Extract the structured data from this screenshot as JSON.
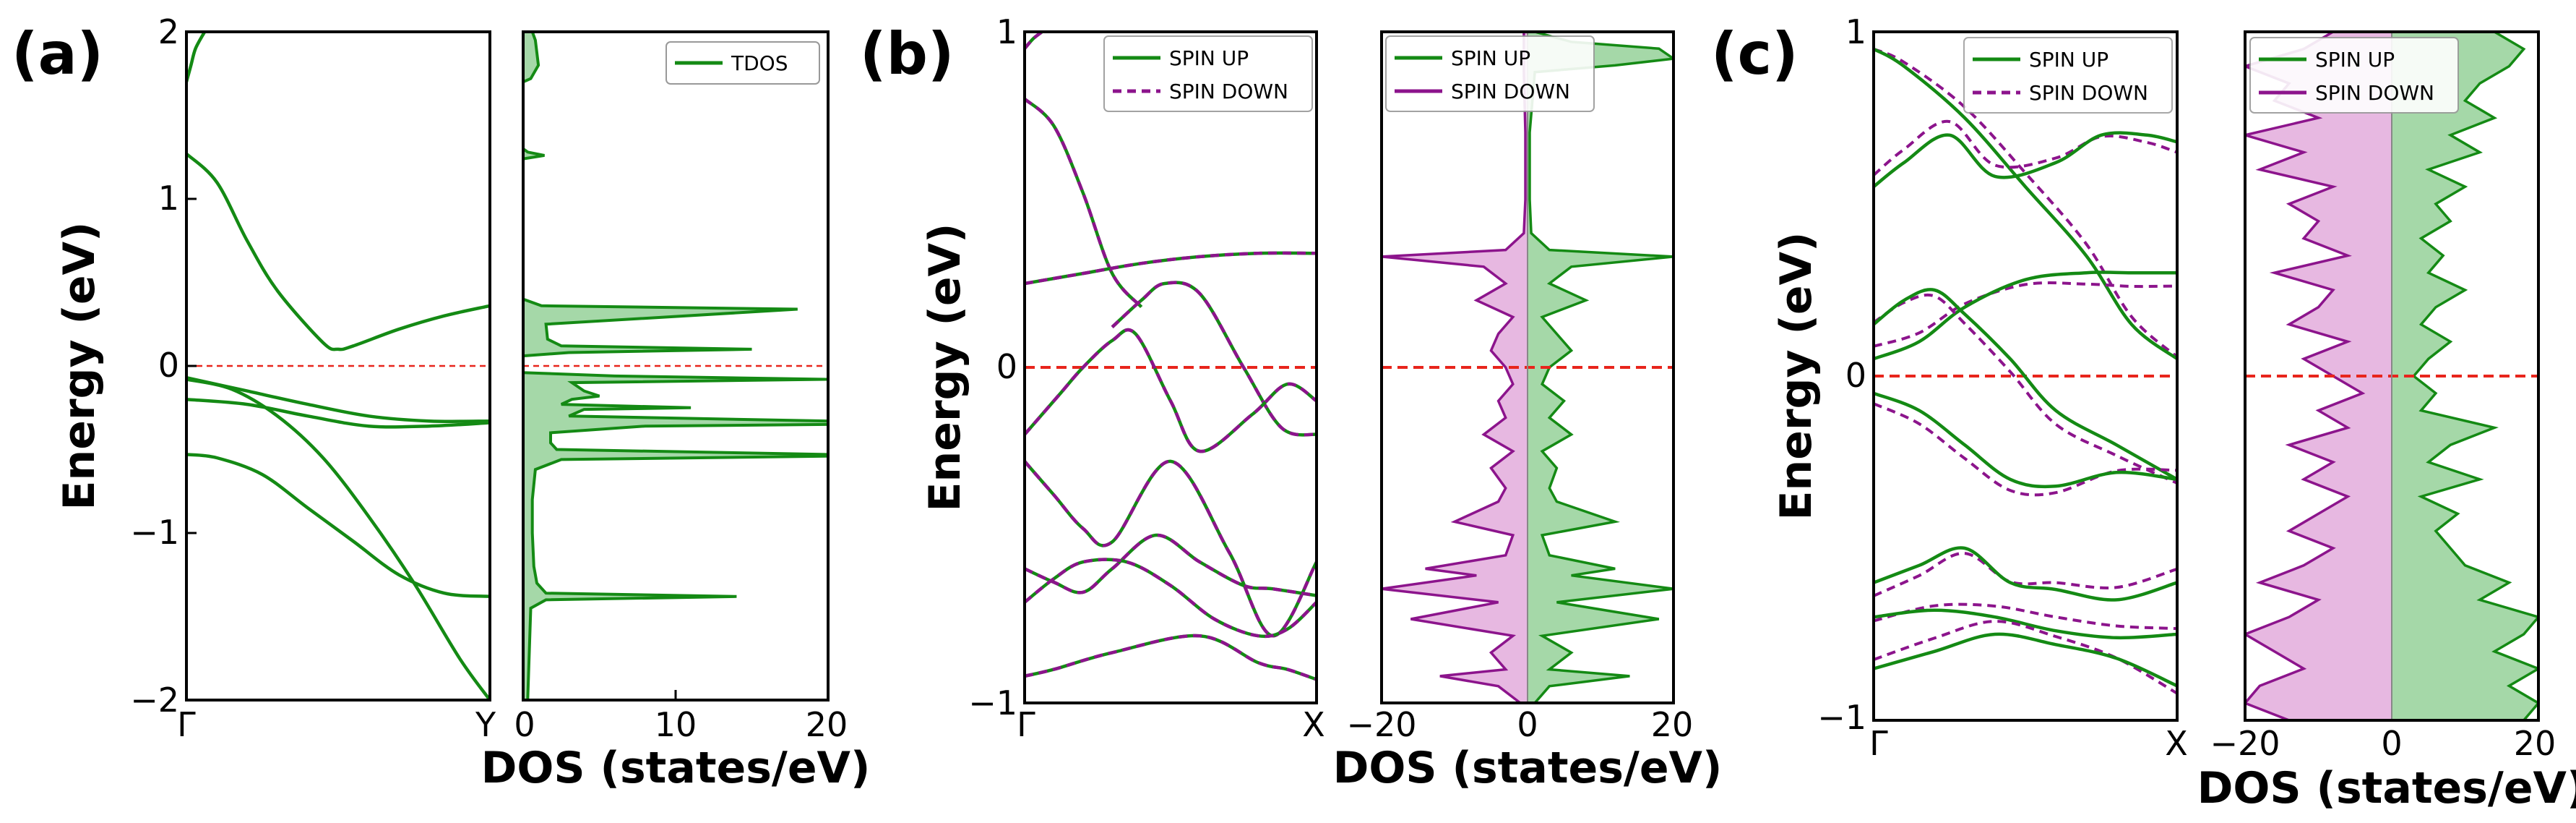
{
  "colors": {
    "up": "#148a14",
    "down": "#8c148c",
    "up_fill": "#a5d8a8",
    "down_fill": "#e7b8e1",
    "fermi": "#e8251c",
    "frame": "#000000"
  },
  "labels": {
    "a": "(a)",
    "b": "(b)",
    "c": "(c)",
    "ylabel": "Energy (eV)",
    "xlabel": "DOS (states/eV)",
    "tdos": "TDOS",
    "spin_up": "SPIN UP",
    "spin_down": "SPIN DOWN"
  },
  "ticks": {
    "energy_a": [
      "2",
      "1",
      "0",
      "−1",
      "−2"
    ],
    "energy_b": [
      "1",
      "0",
      "−1"
    ],
    "energy_c": [
      "1",
      "0",
      "−1"
    ],
    "dos_a": [
      "0",
      "10",
      "20"
    ],
    "dos_bc": [
      "−20",
      "0",
      "20"
    ],
    "kpath_a": [
      "Γ",
      "Y"
    ],
    "kpath_bc": [
      "Γ",
      "X"
    ]
  },
  "chart_data": [
    {
      "panel": "a-bands",
      "type": "line",
      "xlabel": "",
      "ylabel": "Energy (eV)",
      "ylim": [
        -2,
        2
      ],
      "xticks": [
        "Γ",
        "Y"
      ],
      "fermi_level": 0,
      "series": [
        {
          "name": "band1",
          "x": [
            0,
            0.015,
            0.03,
            0.06
          ],
          "y": [
            1.7,
            1.8,
            1.9,
            2.0
          ]
        },
        {
          "name": "band2",
          "x": [
            0,
            0.1,
            0.2,
            0.3,
            0.45,
            0.5,
            0.55,
            0.7,
            0.85,
            1.0
          ],
          "y": [
            1.27,
            1.1,
            0.75,
            0.45,
            0.14,
            0.1,
            0.12,
            0.22,
            0.3,
            0.36
          ]
        },
        {
          "name": "band3",
          "x": [
            0,
            0.2,
            0.4,
            0.6,
            0.8,
            1.0
          ],
          "y": [
            -0.07,
            -0.15,
            -0.23,
            -0.3,
            -0.33,
            -0.33
          ]
        },
        {
          "name": "band4",
          "x": [
            0,
            0.2,
            0.4,
            0.6,
            0.8,
            1.0
          ],
          "y": [
            -0.2,
            -0.23,
            -0.3,
            -0.36,
            -0.36,
            -0.34
          ]
        },
        {
          "name": "band5",
          "x": [
            0,
            0.1,
            0.25,
            0.4,
            0.55,
            0.7,
            0.85,
            1.0
          ],
          "y": [
            -0.53,
            -0.55,
            -0.65,
            -0.85,
            -1.05,
            -1.25,
            -1.36,
            -1.38
          ]
        },
        {
          "name": "band6",
          "x": [
            0,
            0.15,
            0.3,
            0.45,
            0.6,
            0.75,
            0.9,
            1.0
          ],
          "y": [
            -0.08,
            -0.14,
            -0.3,
            -0.55,
            -0.9,
            -1.3,
            -1.75,
            -2.0
          ]
        }
      ]
    },
    {
      "panel": "a-dos",
      "type": "area",
      "xlabel": "DOS (states/eV)",
      "ylabel": "",
      "xlim": [
        0,
        20
      ],
      "ylim": [
        -2,
        2
      ],
      "legend": [
        "TDOS"
      ],
      "series": [
        {
          "name": "TDOS",
          "e": [
            -2.0,
            -1.45,
            -1.4,
            -1.38,
            -1.36,
            -1.3,
            -1.2,
            -1.0,
            -0.8,
            -0.62,
            -0.56,
            -0.54,
            -0.53,
            -0.5,
            -0.46,
            -0.4,
            -0.36,
            -0.35,
            -0.33,
            -0.3,
            -0.26,
            -0.25,
            -0.23,
            -0.2,
            -0.18,
            -0.15,
            -0.1,
            -0.08,
            -0.06,
            -0.04,
            0.0,
            0.06,
            0.08,
            0.1,
            0.12,
            0.16,
            0.25,
            0.34,
            0.36,
            0.4,
            1.24,
            1.26,
            1.28,
            1.3,
            1.7,
            1.72,
            1.8,
            1.95,
            2.0
          ],
          "dos": [
            0.3,
            0.5,
            1.5,
            14,
            1.5,
            0.9,
            0.7,
            0.6,
            0.6,
            0.8,
            2.5,
            20,
            20,
            2.2,
            1.8,
            1.8,
            8,
            20,
            20,
            3,
            4,
            11,
            2.5,
            3.2,
            5,
            4,
            3.2,
            20,
            6,
            0,
            0,
            0,
            3,
            15,
            2.5,
            1.6,
            1.5,
            18,
            1.2,
            0,
            0,
            1.4,
            0.3,
            0,
            0,
            0.5,
            1.0,
            0.8,
            0.6
          ]
        }
      ]
    },
    {
      "panel": "b-bands",
      "type": "line",
      "xlabel": "",
      "ylabel": "Energy (eV)",
      "ylim": [
        -1,
        1
      ],
      "xticks": [
        "Γ",
        "X"
      ],
      "fermi_level": 0,
      "legend": [
        "SPIN UP",
        "SPIN DOWN"
      ],
      "series": [
        {
          "name": "band1",
          "x": [
            0,
            0.03,
            0.06
          ],
          "y": [
            0.95,
            0.98,
            1.0
          ]
        },
        {
          "name": "band2",
          "x": [
            0,
            0.1,
            0.2,
            0.3,
            0.4
          ],
          "y": [
            0.8,
            0.72,
            0.52,
            0.28,
            0.18
          ]
        },
        {
          "name": "band3",
          "x": [
            0,
            0.2,
            0.4,
            0.6,
            0.8,
            1.0
          ],
          "y": [
            0.25,
            0.28,
            0.31,
            0.33,
            0.34,
            0.34
          ]
        },
        {
          "name": "band4",
          "x": [
            0.3,
            0.4,
            0.48,
            0.6,
            0.75,
            0.88,
            1.0
          ],
          "y": [
            0.12,
            0.2,
            0.25,
            0.22,
            0.0,
            -0.18,
            -0.2
          ]
        },
        {
          "name": "band5",
          "x": [
            0,
            0.12,
            0.2,
            0.3,
            0.38,
            0.5,
            0.6,
            0.78,
            0.9,
            1.0
          ],
          "y": [
            -0.2,
            -0.08,
            0.0,
            0.08,
            0.1,
            -0.1,
            -0.25,
            -0.14,
            -0.05,
            -0.1
          ]
        },
        {
          "name": "band6",
          "x": [
            0,
            0.1,
            0.2,
            0.3,
            0.5,
            0.7,
            0.85,
            1.0
          ],
          "y": [
            -0.28,
            -0.38,
            -0.48,
            -0.52,
            -0.28,
            -0.55,
            -0.8,
            -0.58
          ]
        },
        {
          "name": "band7",
          "x": [
            0,
            0.1,
            0.2,
            0.3,
            0.45,
            0.6,
            0.75,
            0.85,
            1.0
          ],
          "y": [
            -0.6,
            -0.64,
            -0.67,
            -0.6,
            -0.5,
            -0.58,
            -0.65,
            -0.66,
            -0.68
          ]
        },
        {
          "name": "band8",
          "x": [
            0,
            0.1,
            0.2,
            0.35,
            0.5,
            0.65,
            0.8,
            0.9,
            1.0
          ],
          "y": [
            -0.7,
            -0.63,
            -0.58,
            -0.58,
            -0.65,
            -0.75,
            -0.8,
            -0.78,
            -0.7
          ]
        },
        {
          "name": "band9",
          "x": [
            0,
            0.1,
            0.3,
            0.6,
            0.8,
            0.9,
            1.0
          ],
          "y": [
            -0.92,
            -0.9,
            -0.85,
            -0.8,
            -0.88,
            -0.9,
            -0.93
          ]
        }
      ]
    },
    {
      "panel": "b-dos",
      "type": "area",
      "xlabel": "DOS (states/eV)",
      "ylabel": "",
      "xlim": [
        -20,
        20
      ],
      "ylim": [
        -1,
        1
      ],
      "legend": [
        "SPIN UP",
        "SPIN DOWN"
      ],
      "series": [
        {
          "name": "SPIN UP",
          "e": [
            -1.0,
            -0.95,
            -0.92,
            -0.9,
            -0.85,
            -0.8,
            -0.75,
            -0.7,
            -0.66,
            -0.62,
            -0.6,
            -0.56,
            -0.5,
            -0.46,
            -0.4,
            -0.36,
            -0.3,
            -0.25,
            -0.2,
            -0.15,
            -0.1,
            -0.05,
            0.0,
            0.05,
            0.1,
            0.15,
            0.2,
            0.25,
            0.3,
            0.33,
            0.35,
            0.4,
            0.5,
            0.7,
            0.88,
            0.9,
            0.92,
            0.95,
            0.97,
            1.0
          ],
          "dos": [
            1,
            3,
            14,
            3,
            6,
            2,
            18,
            4,
            20,
            6,
            12,
            3,
            2,
            12,
            4,
            3,
            4,
            2,
            6,
            3,
            5,
            2,
            3,
            6,
            4,
            2,
            8,
            3,
            6,
            20,
            3,
            0.5,
            0.3,
            0.3,
            1,
            12,
            20,
            18,
            6,
            1
          ]
        },
        {
          "name": "SPIN DOWN",
          "e": [
            -1.0,
            -0.95,
            -0.92,
            -0.9,
            -0.85,
            -0.8,
            -0.75,
            -0.7,
            -0.66,
            -0.62,
            -0.6,
            -0.56,
            -0.5,
            -0.46,
            -0.4,
            -0.36,
            -0.3,
            -0.25,
            -0.2,
            -0.15,
            -0.1,
            -0.05,
            0.0,
            0.05,
            0.1,
            0.15,
            0.2,
            0.25,
            0.3,
            0.33,
            0.35,
            0.4,
            0.5,
            0.7,
            0.88,
            0.9,
            0.92,
            0.95,
            0.97,
            1.0
          ],
          "dos": [
            1,
            4,
            12,
            3,
            5,
            2,
            16,
            4,
            20,
            7,
            14,
            3,
            2,
            10,
            4,
            3,
            5,
            2,
            6,
            3,
            4,
            2,
            3,
            5,
            4,
            2,
            7,
            3,
            6,
            20,
            3,
            0.5,
            0.3,
            0.3,
            0.5,
            0.5,
            0.5,
            0.5,
            0.5,
            0.5
          ]
        }
      ]
    },
    {
      "panel": "c-bands",
      "type": "line",
      "xlabel": "",
      "ylabel": "Energy (eV)",
      "ylim": [
        -1,
        1
      ],
      "xticks": [
        "Γ",
        "X"
      ],
      "fermi_level": 0,
      "legend": [
        "SPIN UP",
        "SPIN DOWN"
      ],
      "series": [
        {
          "name": "up1",
          "spin": "up",
          "x": [
            0,
            0.1,
            0.3,
            0.5,
            0.7,
            0.85,
            1.0
          ],
          "y": [
            0.95,
            0.9,
            0.75,
            0.55,
            0.35,
            0.15,
            0.05
          ]
        },
        {
          "name": "up2",
          "spin": "up",
          "x": [
            0,
            0.1,
            0.25,
            0.4,
            0.6,
            0.75,
            0.9,
            1.0
          ],
          "y": [
            0.55,
            0.62,
            0.7,
            0.58,
            0.62,
            0.7,
            0.7,
            0.68
          ]
        },
        {
          "name": "up3",
          "spin": "up",
          "x": [
            0,
            0.15,
            0.3,
            0.5,
            0.7,
            0.85,
            1.0
          ],
          "y": [
            0.05,
            0.1,
            0.2,
            0.28,
            0.3,
            0.3,
            0.3
          ]
        },
        {
          "name": "up4",
          "spin": "up",
          "x": [
            0,
            0.1,
            0.2,
            0.3,
            0.45,
            0.6,
            0.8,
            1.0
          ],
          "y": [
            0.15,
            0.22,
            0.25,
            0.18,
            0.05,
            -0.1,
            -0.2,
            -0.3
          ]
        },
        {
          "name": "up5",
          "spin": "up",
          "x": [
            0,
            0.15,
            0.3,
            0.45,
            0.6,
            0.8,
            1.0
          ],
          "y": [
            -0.05,
            -0.1,
            -0.2,
            -0.3,
            -0.32,
            -0.28,
            -0.3
          ]
        },
        {
          "name": "up6",
          "spin": "up",
          "x": [
            0,
            0.15,
            0.3,
            0.45,
            0.6,
            0.8,
            1.0
          ],
          "y": [
            -0.6,
            -0.55,
            -0.5,
            -0.6,
            -0.62,
            -0.65,
            -0.6
          ]
        },
        {
          "name": "up7",
          "spin": "up",
          "x": [
            0,
            0.2,
            0.4,
            0.6,
            0.8,
            1.0
          ],
          "y": [
            -0.7,
            -0.68,
            -0.7,
            -0.74,
            -0.76,
            -0.75
          ]
        },
        {
          "name": "up8",
          "spin": "up",
          "x": [
            0,
            0.2,
            0.4,
            0.6,
            0.8,
            1.0
          ],
          "y": [
            -0.85,
            -0.8,
            -0.75,
            -0.78,
            -0.82,
            -0.9
          ]
        }
      ]
    },
    {
      "panel": "c-dos",
      "type": "area",
      "xlabel": "DOS (states/eV)",
      "ylabel": "",
      "xlim": [
        -20,
        20
      ],
      "ylim": [
        -1,
        1
      ],
      "legend": [
        "SPIN UP",
        "SPIN DOWN"
      ],
      "series": [
        {
          "name": "SPIN UP",
          "e": [
            -1.0,
            -0.95,
            -0.9,
            -0.85,
            -0.8,
            -0.75,
            -0.7,
            -0.65,
            -0.6,
            -0.55,
            -0.5,
            -0.45,
            -0.4,
            -0.35,
            -0.3,
            -0.25,
            -0.2,
            -0.15,
            -0.1,
            -0.05,
            0.0,
            0.05,
            0.1,
            0.15,
            0.2,
            0.25,
            0.3,
            0.35,
            0.4,
            0.45,
            0.5,
            0.55,
            0.6,
            0.65,
            0.7,
            0.75,
            0.8,
            0.85,
            0.9,
            0.95,
            1.0
          ],
          "dos": [
            18,
            20,
            16,
            20,
            14,
            18,
            20,
            12,
            16,
            10,
            8,
            6,
            9,
            4,
            12,
            5,
            8,
            14,
            4,
            6,
            3,
            5,
            8,
            4,
            6,
            10,
            5,
            7,
            4,
            8,
            6,
            10,
            5,
            12,
            8,
            14,
            10,
            12,
            16,
            18,
            14
          ]
        },
        {
          "name": "SPIN DOWN",
          "e": [
            -1.0,
            -0.95,
            -0.9,
            -0.85,
            -0.8,
            -0.75,
            -0.7,
            -0.65,
            -0.6,
            -0.55,
            -0.5,
            -0.45,
            -0.4,
            -0.35,
            -0.3,
            -0.25,
            -0.2,
            -0.15,
            -0.1,
            -0.05,
            0.0,
            0.05,
            0.1,
            0.15,
            0.2,
            0.25,
            0.3,
            0.35,
            0.4,
            0.45,
            0.5,
            0.55,
            0.6,
            0.65,
            0.7,
            0.75,
            0.8,
            0.85,
            0.9,
            0.95,
            1.0
          ],
          "dos": [
            14,
            20,
            18,
            12,
            16,
            20,
            14,
            10,
            18,
            12,
            8,
            14,
            10,
            6,
            12,
            8,
            14,
            6,
            10,
            4,
            8,
            12,
            6,
            14,
            10,
            8,
            16,
            6,
            12,
            10,
            14,
            8,
            18,
            12,
            20,
            10,
            16,
            14,
            20,
            12,
            8
          ]
        }
      ]
    }
  ]
}
